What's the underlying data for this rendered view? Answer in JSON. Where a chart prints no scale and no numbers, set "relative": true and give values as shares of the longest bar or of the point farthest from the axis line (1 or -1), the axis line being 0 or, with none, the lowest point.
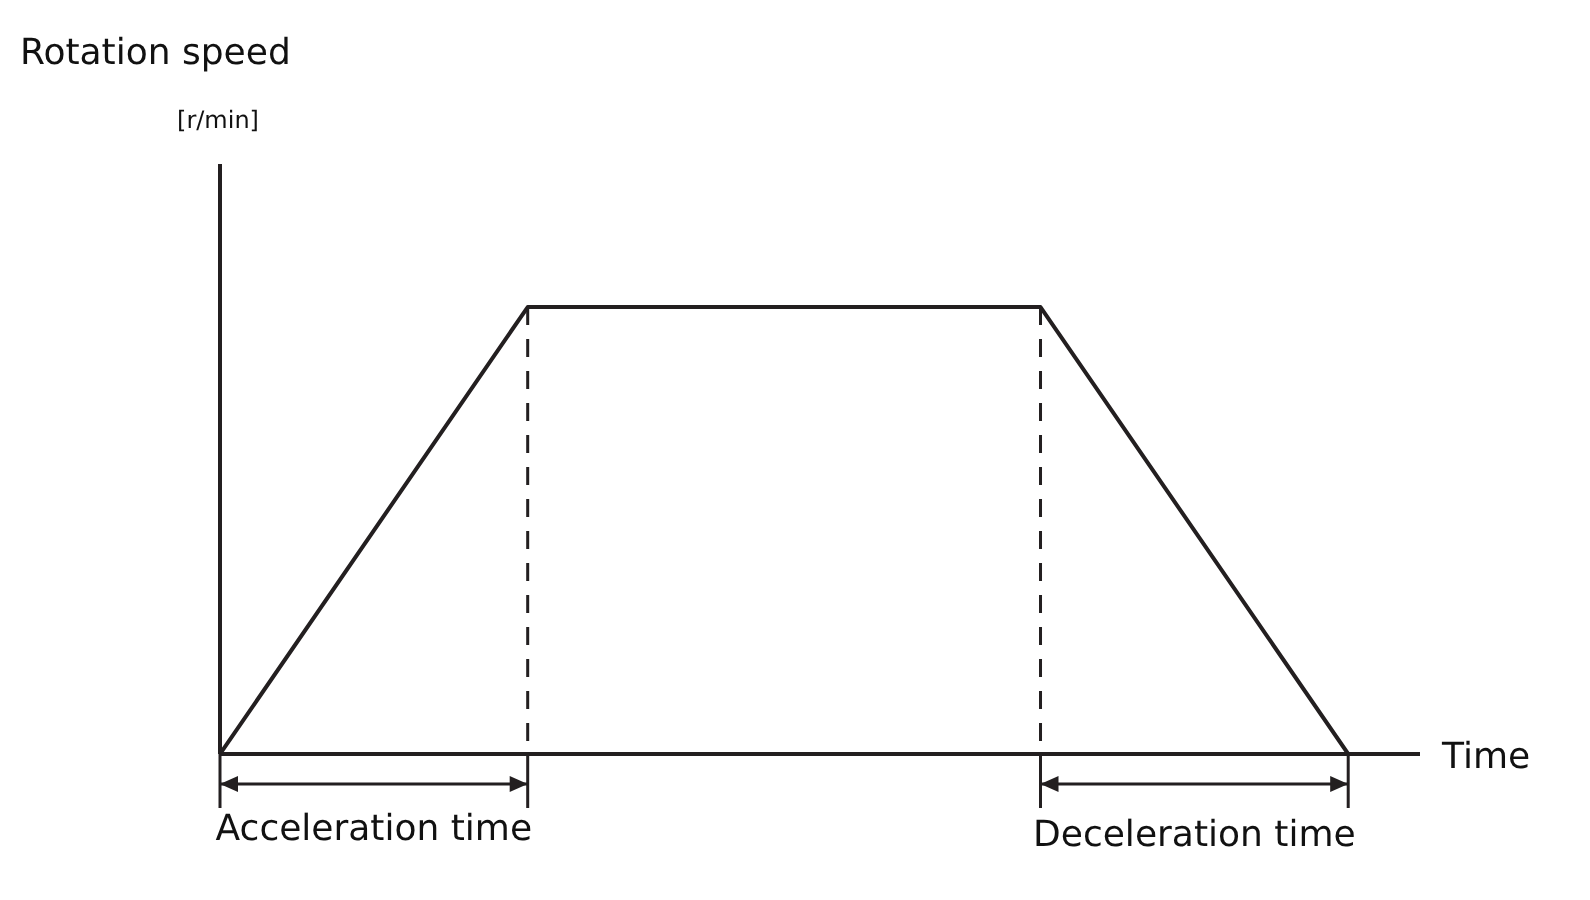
{
  "chart_data": {
    "type": "line",
    "relative": true,
    "ylabel": "Rotation speed\n[r/min]",
    "xlabel": "Time",
    "categories": [
      null,
      null,
      null,
      null,
      null,
      null,
      null,
      null,
      null,
      null,
      null,
      null
    ],
    "grid": false,
    "legend": false,
    "marker": "none",
    "line_style": "solid",
    "series": [
      {
        "color": "#231f20",
        "values": [
          0,
          null,
          null,
          1,
          null,
          null,
          null,
          null,
          1,
          null,
          null,
          0
        ]
      }
    ],
    "annotations": [
      "Acceleration time",
      "Deceleration time"
    ]
  }
}
